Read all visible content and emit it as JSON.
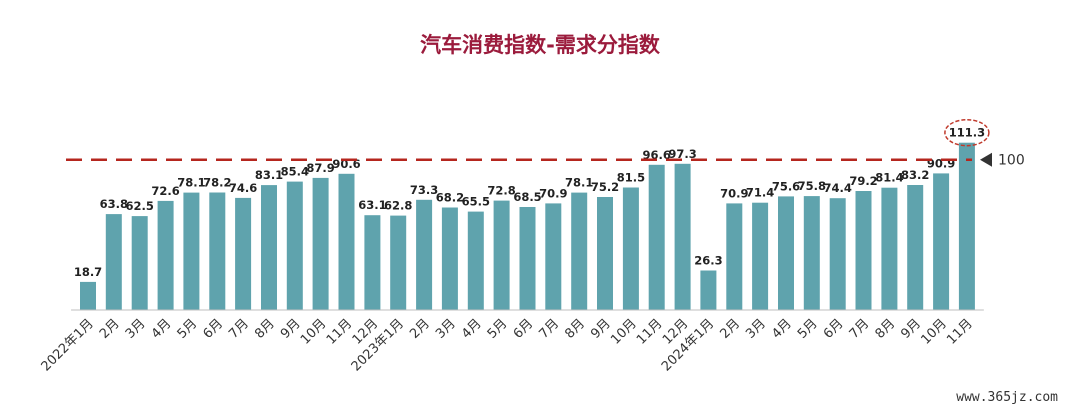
{
  "chart_data": {
    "type": "bar",
    "title": "汽车消费指数-需求分指数",
    "categories": [
      "2022年1月",
      "2月",
      "3月",
      "4月",
      "5月",
      "6月",
      "7月",
      "8月",
      "9月",
      "10月",
      "11月",
      "12月",
      "2023年1月",
      "2月",
      "3月",
      "4月",
      "5月",
      "6月",
      "7月",
      "8月",
      "9月",
      "10月",
      "11月",
      "12月",
      "2024年1月",
      "2月",
      "3月",
      "4月",
      "5月",
      "6月",
      "7月",
      "8月",
      "9月",
      "10月",
      "11月"
    ],
    "values": [
      18.7,
      63.8,
      62.5,
      72.6,
      78.1,
      78.2,
      74.6,
      83.1,
      85.4,
      87.9,
      90.6,
      63.1,
      62.8,
      73.3,
      68.2,
      65.5,
      72.8,
      68.5,
      70.9,
      78.1,
      75.2,
      81.5,
      96.6,
      97.3,
      26.3,
      70.9,
      71.4,
      75.6,
      75.8,
      74.4,
      79.2,
      81.4,
      83.2,
      90.9,
      111.3
    ],
    "value_labels": [
      "18.7",
      "63.8",
      "62.5",
      "72.6",
      "78.1",
      "78.2",
      "74.6",
      "83.1",
      "85.4",
      "87.9",
      "90.6",
      "63.1",
      "62.8",
      "73.3",
      "68.2",
      "65.5",
      "72.8",
      "68.5",
      "70.9",
      "78.1",
      "75.2",
      "81.5",
      "96.6",
      "97.3",
      "26.3",
      "70.9",
      "71.4",
      "75.6",
      "75.8",
      "74.4",
      "79.2",
      "81.4",
      "83.2",
      "90.9",
      "111.3"
    ],
    "reference_line": {
      "value": 100,
      "label": "100",
      "color": "#b5261e"
    },
    "highlight_index": 34,
    "ylim": [
      0,
      120
    ],
    "grid": false,
    "xlabel": "",
    "ylabel": "",
    "colors": {
      "bar": "#5fa3ad",
      "title": "#9b1b3c",
      "highlight": "#c0392b",
      "marker": "#333333"
    }
  },
  "watermark": "www.365jz.com"
}
